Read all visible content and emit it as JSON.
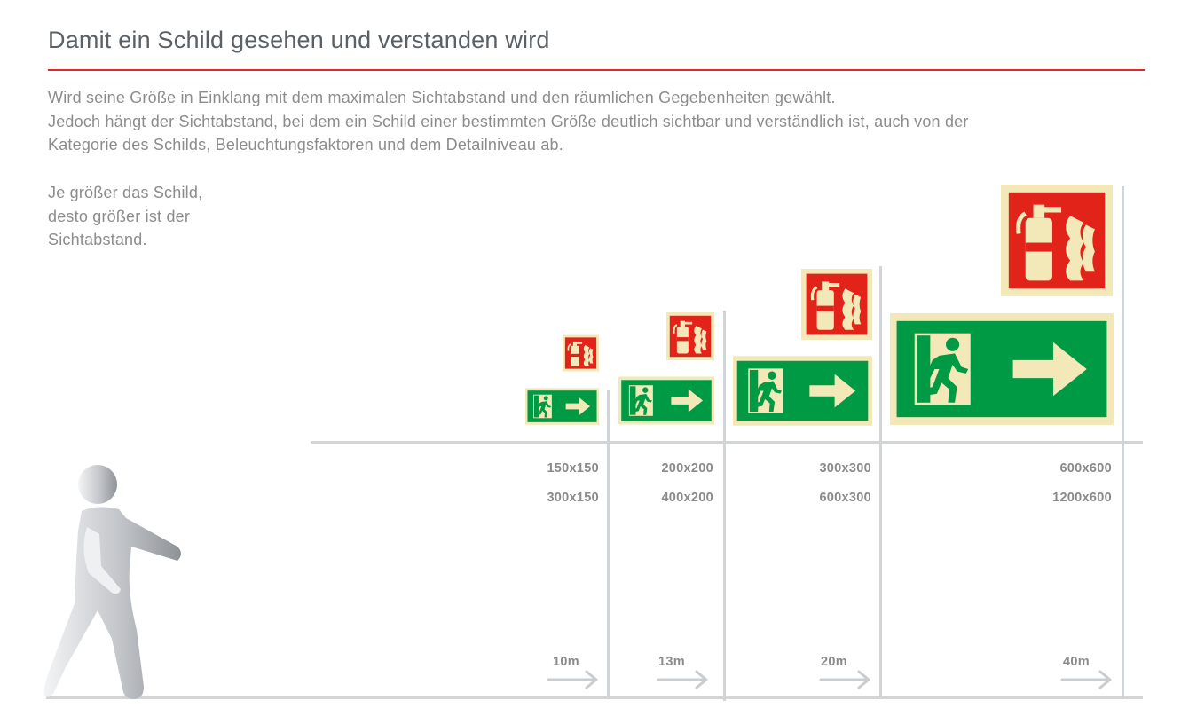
{
  "heading": "Damit ein Schild gesehen und verstanden wird",
  "intro": [
    "Wird seine Größe in Einklang mit dem maximalen Sichtabstand und den räumlichen Gegebenheiten gewählt.",
    "Jedoch hängt der Sichtabstand, bei dem ein Schild einer bestimmten Größe deutlich sichtbar und verständlich ist, auch von der",
    "Kategorie des Schilds, Beleuchtungsfaktoren und dem Detailniveau ab."
  ],
  "side_note": [
    "Je größer das Schild,",
    "desto größer ist der",
    "Sichtabstand."
  ],
  "columns": [
    {
      "square_size": "150x150",
      "rect_size": "300x150",
      "distance": "10m"
    },
    {
      "square_size": "200x200",
      "rect_size": "400x200",
      "distance": "13m"
    },
    {
      "square_size": "300x300",
      "rect_size": "600x300",
      "distance": "20m"
    },
    {
      "square_size": "600x600",
      "rect_size": "1200x600",
      "distance": "40m"
    }
  ],
  "colors": {
    "heading": "#5a6066",
    "accent_rule": "#e1262c",
    "text": "#8c8c8c",
    "grid": "#d1d5d8",
    "sign_red": "#e2231a",
    "sign_green": "#009a44",
    "sign_glow": "#f3e9b8"
  },
  "icons": {
    "square_sign": "fire-extinguisher-sign-icon",
    "rect_sign": "emergency-exit-sign-icon",
    "person": "walking-person-icon",
    "distance": "arrow-right-icon"
  }
}
